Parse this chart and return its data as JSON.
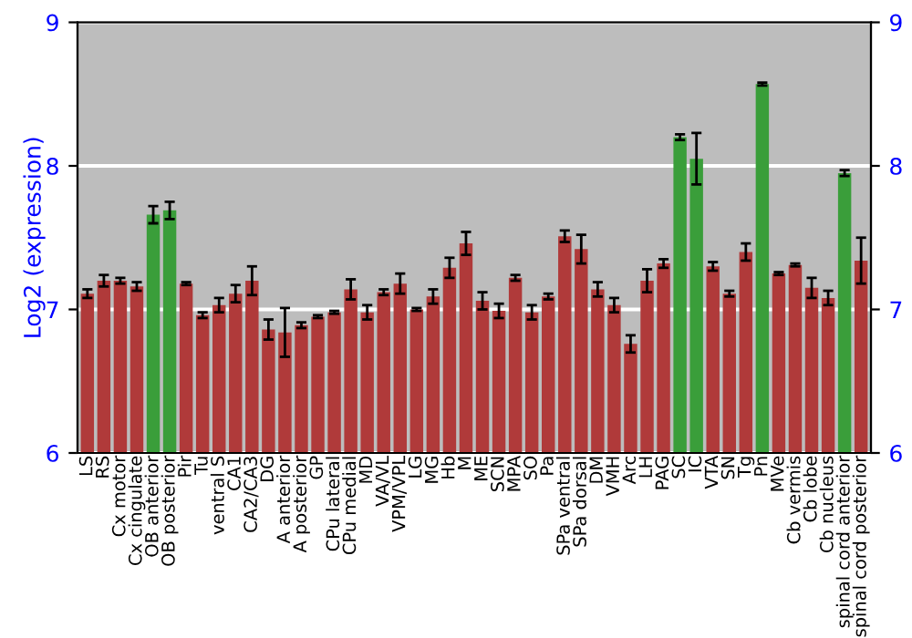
{
  "chart_data": {
    "type": "bar",
    "ylabel": "Log2 (expression)",
    "categories": [
      "LS",
      "RS",
      "Cx motor",
      "Cx cingulate",
      "OB anterior",
      "OB posterior",
      "Pir",
      "Tu",
      "ventral S",
      "CA1",
      "CA2/CA3",
      "DG",
      "A anterior",
      "A posterior",
      "GP",
      "CPu lateral",
      "CPu medial",
      "MD",
      "VA/VL",
      "VPM/VPL",
      "LG",
      "MG",
      "Hb",
      "M",
      "ME",
      "SCN",
      "MPA",
      "SO",
      "Pa",
      "SPa ventral",
      "SPa dorsal",
      "DM",
      "VMH",
      "Arc",
      "LH",
      "PAG",
      "SC",
      "IC",
      "VTA",
      "SN",
      "Tg",
      "Pn",
      "MVe",
      "Cb vermis",
      "Cb lobe",
      "Cb nucleus",
      "spinal cord anterior",
      "spinal cord posterior"
    ],
    "values": [
      7.11,
      7.2,
      7.2,
      7.16,
      7.66,
      7.69,
      7.18,
      6.96,
      7.03,
      7.11,
      7.2,
      6.86,
      6.84,
      6.89,
      6.95,
      6.98,
      7.14,
      6.98,
      7.12,
      7.18,
      7.0,
      7.09,
      7.29,
      7.46,
      7.06,
      6.99,
      7.22,
      6.98,
      7.09,
      7.51,
      7.42,
      7.14,
      7.03,
      6.76,
      7.2,
      7.32,
      8.2,
      8.05,
      7.3,
      7.11,
      7.4,
      8.57,
      7.25,
      7.31,
      7.15,
      7.08,
      7.95,
      7.34
    ],
    "errors": [
      0.03,
      0.04,
      0.02,
      0.03,
      0.06,
      0.06,
      0.01,
      0.02,
      0.05,
      0.06,
      0.1,
      0.07,
      0.17,
      0.02,
      0.01,
      0.01,
      0.07,
      0.05,
      0.02,
      0.07,
      0.01,
      0.05,
      0.07,
      0.08,
      0.06,
      0.05,
      0.02,
      0.05,
      0.02,
      0.04,
      0.1,
      0.05,
      0.05,
      0.06,
      0.08,
      0.03,
      0.02,
      0.18,
      0.03,
      0.02,
      0.06,
      0.01,
      0.01,
      0.01,
      0.07,
      0.05,
      0.02,
      0.16
    ],
    "colors": [
      "#b03a3a",
      "#b03a3a",
      "#b03a3a",
      "#b03a3a",
      "#3a9e3a",
      "#3a9e3a",
      "#b03a3a",
      "#b03a3a",
      "#b03a3a",
      "#b03a3a",
      "#b03a3a",
      "#b03a3a",
      "#b03a3a",
      "#b03a3a",
      "#b03a3a",
      "#b03a3a",
      "#b03a3a",
      "#b03a3a",
      "#b03a3a",
      "#b03a3a",
      "#b03a3a",
      "#b03a3a",
      "#b03a3a",
      "#b03a3a",
      "#b03a3a",
      "#b03a3a",
      "#b03a3a",
      "#b03a3a",
      "#b03a3a",
      "#b03a3a",
      "#b03a3a",
      "#b03a3a",
      "#b03a3a",
      "#b03a3a",
      "#b03a3a",
      "#b03a3a",
      "#3a9e3a",
      "#3a9e3a",
      "#b03a3a",
      "#b03a3a",
      "#b03a3a",
      "#3a9e3a",
      "#b03a3a",
      "#b03a3a",
      "#b03a3a",
      "#b03a3a",
      "#3a9e3a",
      "#b03a3a"
    ],
    "ylim": [
      6,
      9
    ],
    "yticks": [
      6,
      7,
      8,
      9
    ],
    "y2lim": [
      6,
      9
    ],
    "y2ticks": [
      6,
      7,
      8,
      9
    ],
    "grid": "y",
    "legend": false
  }
}
